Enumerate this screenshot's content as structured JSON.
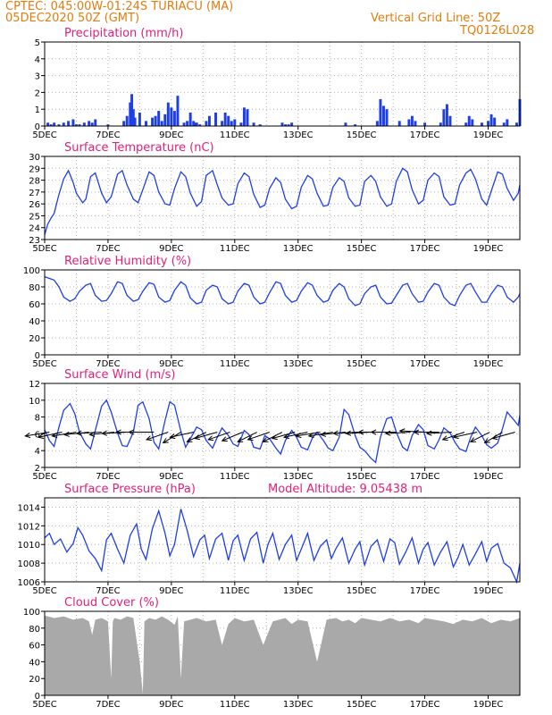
{
  "header": {
    "line1": "CPTEC:   045:00W-01:24S   TURIACU (MA)",
    "line2": "05DEC2020 50Z (GMT)",
    "grid_note": "Vertical Grid Line: 50Z",
    "code": "TQ0126L028"
  },
  "colors": {
    "header": "#e07d10",
    "title": "#e0207a",
    "line": "#1f3fe6",
    "cloud": "#a9a9a9",
    "arrow": "#000000"
  },
  "chart_data": [
    {
      "type": "bar",
      "title": "Precipitation (mm/h)",
      "ylim": [
        0,
        5
      ],
      "yticks": [
        "0",
        "1",
        "2",
        "3",
        "4",
        "5"
      ],
      "xticks": [
        "5DEC",
        "7DEC",
        "9DEC",
        "11DEC",
        "13DEC",
        "15DEC",
        "17DEC",
        "19DEC"
      ],
      "x_days": [
        0,
        15
      ],
      "x": [
        0.1,
        0.2,
        0.3,
        0.45,
        0.6,
        0.75,
        0.9,
        1.0,
        1.1,
        1.25,
        1.4,
        1.5,
        1.6,
        2.0,
        2.5,
        2.6,
        2.7,
        2.75,
        2.8,
        2.85,
        3.0,
        3.2,
        3.4,
        3.5,
        3.6,
        3.7,
        3.8,
        3.9,
        4.0,
        4.1,
        4.2,
        4.4,
        4.5,
        4.6,
        4.7,
        4.75,
        4.8,
        4.9,
        5.1,
        5.2,
        5.4,
        5.6,
        5.7,
        5.8,
        5.9,
        6.0,
        6.2,
        6.3,
        6.4,
        6.6,
        6.8,
        7.5,
        7.6,
        7.7,
        7.8,
        9.5,
        9.8,
        10.5,
        10.6,
        10.7,
        10.8,
        11.2,
        11.5,
        11.6,
        11.7,
        12.0,
        12.5,
        12.6,
        12.7,
        12.8,
        13.3,
        13.4,
        13.5,
        13.8,
        14.0,
        14.1,
        14.2,
        14.5,
        14.6,
        14.9,
        15.0
      ],
      "values": [
        0.2,
        0.1,
        0.2,
        0.1,
        0.2,
        0.3,
        0.4,
        0.1,
        0.1,
        0.2,
        0.3,
        0.2,
        0.4,
        0.1,
        0.3,
        0.6,
        1.4,
        1.9,
        1.0,
        0.5,
        0.8,
        0.3,
        0.5,
        0.6,
        0.9,
        0.3,
        0.7,
        1.4,
        1.1,
        0.9,
        1.8,
        0.2,
        0.3,
        0.8,
        0.3,
        0.2,
        0.2,
        0.1,
        0.3,
        0.6,
        0.8,
        0.3,
        0.8,
        0.6,
        0.3,
        0.4,
        0.2,
        1.1,
        1.0,
        0.2,
        0.1,
        0.2,
        0.1,
        0.1,
        0.2,
        0.2,
        0.1,
        0.3,
        1.6,
        1.2,
        1.0,
        0.3,
        0.4,
        0.6,
        0.3,
        0.2,
        0.2,
        1.0,
        1.3,
        0.6,
        0.2,
        0.6,
        0.4,
        0.2,
        0.3,
        0.7,
        0.5,
        0.2,
        0.4,
        0.2,
        1.6
      ]
    },
    {
      "type": "line",
      "title": "Surface Temperature (nC)",
      "ylim": [
        23,
        30
      ],
      "yticks": [
        "23",
        "24",
        "25",
        "26",
        "27",
        "28",
        "29",
        "30"
      ],
      "xticks": [
        "5DEC",
        "7DEC",
        "9DEC",
        "11DEC",
        "13DEC",
        "15DEC",
        "17DEC",
        "19DEC"
      ],
      "x_days": [
        0,
        15
      ],
      "x": [
        0.0,
        0.1,
        0.2,
        0.3,
        0.45,
        0.6,
        0.75,
        0.9,
        1.0,
        1.2,
        1.3,
        1.45,
        1.6,
        1.8,
        1.95,
        2.1,
        2.3,
        2.45,
        2.6,
        2.8,
        2.95,
        3.1,
        3.3,
        3.45,
        3.6,
        3.8,
        3.95,
        4.1,
        4.3,
        4.45,
        4.6,
        4.8,
        4.95,
        5.1,
        5.3,
        5.45,
        5.6,
        5.8,
        5.95,
        6.1,
        6.3,
        6.45,
        6.6,
        6.8,
        6.95,
        7.1,
        7.3,
        7.45,
        7.6,
        7.8,
        7.95,
        8.1,
        8.3,
        8.45,
        8.6,
        8.8,
        8.95,
        9.1,
        9.3,
        9.45,
        9.6,
        9.8,
        9.95,
        10.1,
        10.3,
        10.45,
        10.6,
        10.8,
        10.95,
        11.1,
        11.3,
        11.45,
        11.6,
        11.8,
        11.95,
        12.1,
        12.3,
        12.45,
        12.6,
        12.8,
        12.95,
        13.1,
        13.3,
        13.45,
        13.6,
        13.8,
        13.95,
        14.1,
        14.3,
        14.45,
        14.6,
        14.8,
        14.95,
        15.0
      ],
      "values": [
        23.4,
        24.3,
        24.8,
        25.2,
        26.8,
        28.1,
        28.8,
        27.8,
        26.9,
        26.1,
        26.4,
        28.3,
        28.6,
        26.9,
        26.1,
        26.6,
        28.5,
        28.8,
        27.6,
        26.4,
        26.1,
        27.2,
        28.7,
        28.4,
        27.0,
        26.0,
        25.9,
        27.3,
        28.7,
        28.3,
        26.9,
        25.8,
        26.2,
        28.4,
        28.8,
        27.6,
        26.5,
        25.9,
        26.0,
        27.7,
        28.6,
        28.3,
        26.8,
        25.7,
        25.9,
        27.3,
        28.2,
        27.8,
        26.4,
        25.6,
        25.8,
        27.4,
        28.4,
        28.1,
        26.9,
        25.8,
        25.9,
        27.4,
        28.2,
        27.9,
        26.5,
        25.8,
        25.9,
        27.9,
        28.4,
        27.9,
        26.6,
        25.8,
        26.0,
        27.9,
        29.0,
        28.7,
        27.2,
        26.0,
        26.3,
        28.0,
        28.6,
        28.3,
        26.6,
        25.9,
        26.0,
        27.6,
        28.6,
        28.9,
        28.1,
        26.4,
        25.9,
        27.1,
        28.7,
        28.5,
        27.3,
        26.3,
        26.9,
        27.6
      ]
    },
    {
      "type": "line",
      "title": "Relative Humidity (%)",
      "ylim": [
        0,
        100
      ],
      "yticks": [
        "0",
        "20",
        "40",
        "60",
        "80",
        "100"
      ],
      "xticks": [
        "5DEC",
        "7DEC",
        "9DEC",
        "11DEC",
        "13DEC",
        "15DEC",
        "17DEC",
        "19DEC"
      ],
      "x_days": [
        0,
        15
      ],
      "x": [
        0.0,
        0.15,
        0.3,
        0.45,
        0.6,
        0.8,
        0.95,
        1.1,
        1.3,
        1.45,
        1.6,
        1.8,
        1.95,
        2.1,
        2.3,
        2.45,
        2.6,
        2.8,
        2.95,
        3.1,
        3.3,
        3.45,
        3.6,
        3.8,
        3.95,
        4.1,
        4.3,
        4.45,
        4.6,
        4.8,
        4.95,
        5.1,
        5.3,
        5.45,
        5.6,
        5.8,
        5.95,
        6.1,
        6.3,
        6.45,
        6.6,
        6.8,
        6.95,
        7.1,
        7.3,
        7.45,
        7.6,
        7.8,
        7.95,
        8.1,
        8.3,
        8.45,
        8.6,
        8.8,
        8.95,
        9.1,
        9.3,
        9.45,
        9.6,
        9.8,
        9.95,
        10.1,
        10.3,
        10.45,
        10.6,
        10.8,
        10.95,
        11.1,
        11.3,
        11.45,
        11.6,
        11.8,
        11.95,
        12.1,
        12.3,
        12.45,
        12.6,
        12.8,
        12.95,
        13.1,
        13.3,
        13.45,
        13.6,
        13.8,
        13.95,
        14.1,
        14.3,
        14.45,
        14.6,
        14.8,
        14.95,
        15.0
      ],
      "values": [
        92,
        90,
        88,
        80,
        68,
        63,
        66,
        75,
        82,
        84,
        70,
        63,
        64,
        72,
        86,
        84,
        70,
        63,
        65,
        75,
        85,
        83,
        68,
        62,
        64,
        76,
        86,
        82,
        67,
        60,
        62,
        76,
        82,
        80,
        66,
        60,
        62,
        75,
        84,
        82,
        68,
        60,
        62,
        73,
        86,
        84,
        70,
        62,
        64,
        75,
        85,
        82,
        70,
        62,
        64,
        76,
        84,
        80,
        66,
        58,
        60,
        72,
        80,
        82,
        68,
        60,
        61,
        70,
        82,
        84,
        72,
        62,
        63,
        74,
        84,
        82,
        68,
        60,
        58,
        70,
        82,
        84,
        74,
        62,
        62,
        72,
        82,
        80,
        68,
        62,
        68,
        72
      ]
    },
    {
      "type": "line",
      "title": "Surface Wind (m/s)",
      "ylim": [
        2,
        12
      ],
      "yticks": [
        "2",
        "4",
        "6",
        "8",
        "10",
        "12"
      ],
      "xticks": [
        "5DEC",
        "7DEC",
        "9DEC",
        "11DEC",
        "13DEC",
        "15DEC",
        "17DEC",
        "19DEC"
      ],
      "x_days": [
        0,
        15
      ],
      "x": [
        0.0,
        0.15,
        0.3,
        0.45,
        0.6,
        0.8,
        0.95,
        1.1,
        1.3,
        1.45,
        1.6,
        1.8,
        1.95,
        2.1,
        2.3,
        2.45,
        2.6,
        2.8,
        2.95,
        3.1,
        3.3,
        3.45,
        3.6,
        3.8,
        3.95,
        4.1,
        4.3,
        4.45,
        4.6,
        4.8,
        4.95,
        5.1,
        5.3,
        5.45,
        5.6,
        5.8,
        5.95,
        6.1,
        6.3,
        6.45,
        6.6,
        6.8,
        6.95,
        7.1,
        7.3,
        7.45,
        7.6,
        7.8,
        7.95,
        8.1,
        8.3,
        8.45,
        8.6,
        8.8,
        8.95,
        9.1,
        9.3,
        9.45,
        9.6,
        9.8,
        9.95,
        10.1,
        10.3,
        10.45,
        10.6,
        10.8,
        10.95,
        11.1,
        11.3,
        11.45,
        11.6,
        11.8,
        11.95,
        12.1,
        12.3,
        12.45,
        12.6,
        12.8,
        12.95,
        13.1,
        13.3,
        13.45,
        13.6,
        13.8,
        13.95,
        14.1,
        14.3,
        14.45,
        14.6,
        14.8,
        14.95,
        15.0
      ],
      "values": [
        6.5,
        5.2,
        4.5,
        6.8,
        8.8,
        9.6,
        8.4,
        6.2,
        4.8,
        4.2,
        6.4,
        9.3,
        10.0,
        8.6,
        6.1,
        4.6,
        4.5,
        6.2,
        9.4,
        9.8,
        7.8,
        5.0,
        4.2,
        7.6,
        9.8,
        9.4,
        6.3,
        4.4,
        5.4,
        6.8,
        6.5,
        5.2,
        4.3,
        5.6,
        6.7,
        5.8,
        4.8,
        4.5,
        6.4,
        5.9,
        4.4,
        4.2,
        5.8,
        5.4,
        4.3,
        3.6,
        5.2,
        6.4,
        5.6,
        4.4,
        4.1,
        5.5,
        6.2,
        5.2,
        4.3,
        4.0,
        5.6,
        8.9,
        8.3,
        5.8,
        4.4,
        4.0,
        3.1,
        2.6,
        5.6,
        7.8,
        8.0,
        6.2,
        4.4,
        4.0,
        5.8,
        7.1,
        6.5,
        4.6,
        4.2,
        5.3,
        6.7,
        6.1,
        5.0,
        4.2,
        3.9,
        5.6,
        6.8,
        5.8,
        4.7,
        4.3,
        4.9,
        6.6,
        8.6,
        7.7,
        7.0,
        8.2
      ]
    },
    {
      "type": "line",
      "title": "Surface Pressure (hPa)",
      "annotation": "Model Altitude: 9.05438 m",
      "ylim": [
        1006,
        1015
      ],
      "yticks": [
        "1006",
        "1008",
        "1010",
        "1012",
        "1014"
      ],
      "xticks": [
        "5DEC",
        "7DEC",
        "9DEC",
        "11DEC",
        "13DEC",
        "15DEC",
        "17DEC",
        "19DEC"
      ],
      "x_days": [
        0,
        15
      ],
      "x": [
        0.0,
        0.15,
        0.3,
        0.5,
        0.7,
        0.9,
        1.05,
        1.2,
        1.4,
        1.6,
        1.8,
        1.95,
        2.1,
        2.3,
        2.5,
        2.7,
        2.9,
        3.05,
        3.2,
        3.4,
        3.6,
        3.8,
        3.95,
        4.1,
        4.3,
        4.5,
        4.7,
        4.9,
        5.05,
        5.2,
        5.4,
        5.6,
        5.8,
        5.95,
        6.1,
        6.3,
        6.5,
        6.7,
        6.9,
        7.05,
        7.2,
        7.4,
        7.6,
        7.8,
        7.95,
        8.1,
        8.3,
        8.5,
        8.7,
        8.9,
        9.05,
        9.2,
        9.4,
        9.6,
        9.8,
        9.95,
        10.1,
        10.3,
        10.5,
        10.7,
        10.9,
        11.05,
        11.2,
        11.4,
        11.6,
        11.8,
        11.95,
        12.1,
        12.3,
        12.5,
        12.7,
        12.9,
        13.05,
        13.2,
        13.4,
        13.6,
        13.8,
        13.95,
        14.1,
        14.3,
        14.5,
        14.7,
        14.9,
        15.0
      ],
      "values": [
        1010.7,
        1011.2,
        1010.0,
        1010.6,
        1009.2,
        1010.1,
        1011.8,
        1011.0,
        1009.3,
        1008.5,
        1007.2,
        1010.5,
        1011.2,
        1009.5,
        1008.0,
        1011.0,
        1012.2,
        1009.5,
        1008.4,
        1011.7,
        1013.6,
        1011.2,
        1008.8,
        1010.0,
        1013.8,
        1011.5,
        1008.7,
        1010.5,
        1011.0,
        1008.5,
        1010.6,
        1011.2,
        1008.3,
        1010.4,
        1011.0,
        1008.3,
        1010.6,
        1011.3,
        1008.0,
        1010.0,
        1011.2,
        1008.4,
        1010.0,
        1011.0,
        1008.3,
        1009.5,
        1011.2,
        1008.3,
        1009.8,
        1010.5,
        1008.5,
        1009.6,
        1010.7,
        1008.0,
        1009.5,
        1010.3,
        1007.8,
        1009.8,
        1010.5,
        1008.2,
        1010.6,
        1010.2,
        1007.9,
        1009.2,
        1010.7,
        1008.0,
        1009.5,
        1010.2,
        1007.8,
        1009.2,
        1010.3,
        1007.6,
        1008.6,
        1010.0,
        1007.8,
        1009.0,
        1010.3,
        1008.2,
        1009.6,
        1010.1,
        1008.0,
        1007.5,
        1006.0,
        1008.0
      ]
    },
    {
      "type": "area",
      "title": "Cloud Cover (%)",
      "ylim": [
        0,
        100
      ],
      "yticks": [
        "0",
        "20",
        "40",
        "60",
        "80",
        "100"
      ],
      "xticks": [
        "5DEC",
        "7DEC",
        "9DEC",
        "11DEC",
        "13DEC",
        "15DEC",
        "17DEC",
        "19DEC"
      ],
      "x_days": [
        0,
        15
      ],
      "x": [
        0.0,
        0.3,
        0.6,
        0.9,
        1.2,
        1.4,
        1.5,
        1.6,
        1.8,
        2.0,
        2.1,
        2.15,
        2.2,
        2.4,
        2.6,
        2.8,
        3.0,
        3.1,
        3.15,
        3.3,
        3.5,
        3.7,
        3.9,
        4.1,
        4.2,
        4.3,
        4.4,
        4.6,
        4.8,
        5.1,
        5.4,
        5.6,
        5.8,
        6.0,
        6.3,
        6.6,
        6.9,
        7.2,
        7.4,
        7.6,
        7.8,
        8.0,
        8.3,
        8.6,
        8.9,
        9.2,
        9.4,
        9.6,
        9.8,
        10.0,
        10.3,
        10.6,
        10.9,
        11.2,
        11.5,
        11.8,
        12.0,
        12.3,
        12.6,
        12.9,
        13.2,
        13.5,
        13.8,
        14.1,
        14.4,
        14.7,
        15.0
      ],
      "values": [
        95,
        92,
        94,
        90,
        92,
        88,
        72,
        90,
        92,
        88,
        20,
        88,
        92,
        90,
        94,
        92,
        40,
        2,
        88,
        92,
        90,
        94,
        90,
        84,
        94,
        20,
        88,
        90,
        92,
        88,
        90,
        60,
        85,
        92,
        88,
        90,
        60,
        88,
        90,
        92,
        85,
        90,
        88,
        40,
        90,
        92,
        88,
        90,
        86,
        92,
        90,
        88,
        92,
        88,
        90,
        86,
        92,
        90,
        88,
        85,
        90,
        88,
        92,
        86,
        90,
        88,
        92
      ]
    }
  ],
  "wind_arrows": [
    {
      "x": 0.15,
      "dir_deg": 255
    },
    {
      "x": 0.55,
      "dir_deg": 250
    },
    {
      "x": 1.0,
      "dir_deg": 255
    },
    {
      "x": 1.4,
      "dir_deg": 260
    },
    {
      "x": 1.8,
      "dir_deg": 265
    },
    {
      "x": 2.2,
      "dir_deg": 260
    },
    {
      "x": 2.6,
      "dir_deg": 265
    },
    {
      "x": 3.05,
      "dir_deg": 270
    },
    {
      "x": 3.45,
      "dir_deg": 270
    },
    {
      "x": 3.9,
      "dir_deg": 240
    },
    {
      "x": 4.3,
      "dir_deg": 225
    },
    {
      "x": 4.7,
      "dir_deg": 250
    },
    {
      "x": 5.1,
      "dir_deg": 230
    },
    {
      "x": 5.45,
      "dir_deg": 245
    },
    {
      "x": 5.85,
      "dir_deg": 240
    },
    {
      "x": 6.25,
      "dir_deg": 235
    },
    {
      "x": 6.7,
      "dir_deg": 230
    },
    {
      "x": 7.1,
      "dir_deg": 240
    },
    {
      "x": 7.5,
      "dir_deg": 230
    },
    {
      "x": 7.9,
      "dir_deg": 245
    },
    {
      "x": 8.3,
      "dir_deg": 250
    },
    {
      "x": 8.7,
      "dir_deg": 255
    },
    {
      "x": 9.1,
      "dir_deg": 255
    },
    {
      "x": 9.5,
      "dir_deg": 260
    },
    {
      "x": 9.9,
      "dir_deg": 265
    },
    {
      "x": 10.3,
      "dir_deg": 265
    },
    {
      "x": 10.7,
      "dir_deg": 270
    },
    {
      "x": 11.1,
      "dir_deg": 270
    },
    {
      "x": 11.55,
      "dir_deg": 265
    },
    {
      "x": 12.0,
      "dir_deg": 275
    },
    {
      "x": 12.45,
      "dir_deg": 270
    },
    {
      "x": 12.85,
      "dir_deg": 265
    },
    {
      "x": 13.25,
      "dir_deg": 240
    },
    {
      "x": 13.65,
      "dir_deg": 250
    },
    {
      "x": 14.05,
      "dir_deg": 230
    },
    {
      "x": 14.45,
      "dir_deg": 225
    },
    {
      "x": 14.85,
      "dir_deg": 245
    }
  ]
}
